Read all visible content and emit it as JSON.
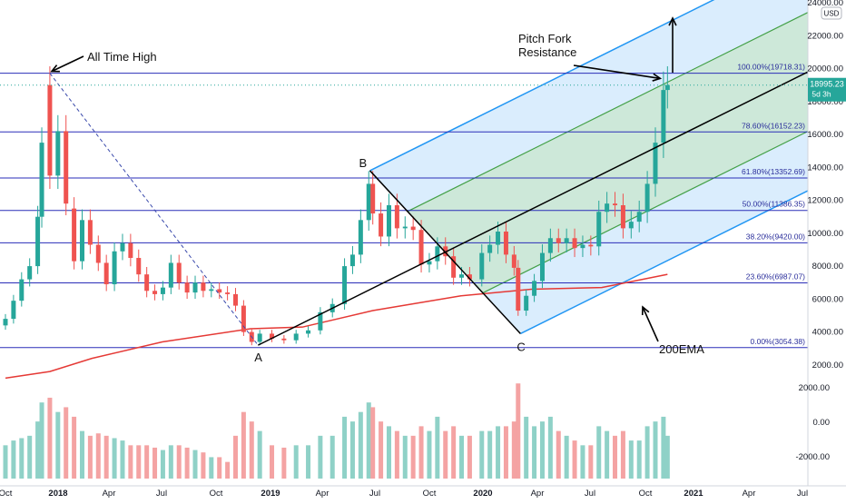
{
  "chart_data": {
    "type": "candlestick",
    "currency_label": "USD",
    "price_axis": {
      "min": 1000,
      "max": 24000,
      "ticks": [
        2000,
        4000,
        6000,
        8000,
        10000,
        12000,
        14000,
        16000,
        18000,
        20000,
        22000,
        24000
      ],
      "tick_labels": [
        "2000.00",
        "4000.00",
        "6000.00",
        "8000.00",
        "10000.00",
        "12000.00",
        "14000.00",
        "16000.00",
        "18000.00",
        "20000.00",
        "22000.00",
        "24000.00"
      ]
    },
    "volume_axis": {
      "ticks": [
        2000,
        0,
        -2000
      ],
      "tick_labels": [
        "2000.00",
        "0.00",
        "-2000.00"
      ]
    },
    "time_axis": {
      "labels": [
        "Oct",
        "2018",
        "Apr",
        "Jul",
        "Oct",
        "2019",
        "Apr",
        "Jul",
        "Oct",
        "2020",
        "Apr",
        "Jul",
        "Oct",
        "2021",
        "Apr",
        "Jul"
      ]
    },
    "last_price": {
      "value": 18995.23,
      "label": "18995.23",
      "countdown": "5d 3h"
    },
    "fib_levels": [
      {
        "ratio": "100.00%",
        "price": 19718.31,
        "label": "100.00%(19718.31)"
      },
      {
        "ratio": "78.60%",
        "price": 16152.23,
        "label": "78.60%(16152.23)"
      },
      {
        "ratio": "61.80%",
        "price": 13352.69,
        "label": "61.80%(13352.69)"
      },
      {
        "ratio": "50.00%",
        "price": 11386.35,
        "label": "50.00%(11386.35)"
      },
      {
        "ratio": "38.20%",
        "price": 9420.0,
        "label": "38.20%(9420.00)"
      },
      {
        "ratio": "23.60%",
        "price": 6987.07,
        "label": "23.60%(6987.07)"
      },
      {
        "ratio": "0.00%",
        "price": 3054.38,
        "label": "0.00%(3054.38)"
      }
    ],
    "pitchfork_points": {
      "A": "A",
      "B": "B",
      "C": "C"
    },
    "annotations": {
      "ath": "All Time High",
      "pitchfork_line1": "Pitch Fork",
      "pitchfork_line2": "Resistance",
      "ema": "200EMA"
    },
    "colors": {
      "up": "#26a69a",
      "down": "#ef5350",
      "vol_up": "#8fd1c7",
      "vol_down": "#f4a3a3",
      "fib": "#2a2eb8",
      "ema": "#e53935",
      "fork_outer": "#2196f3",
      "fork_inner": "#43a047",
      "fork_fill_outer": "#bbdefb",
      "fork_fill_inner": "#c8e6c9"
    },
    "weekly": [
      {
        "t": "2017-10-02",
        "o": 4400,
        "c": 4800,
        "v": 700
      },
      {
        "t": "2017-10-16",
        "o": 4800,
        "c": 5900,
        "v": 800
      },
      {
        "t": "2017-10-30",
        "o": 5900,
        "c": 7200,
        "v": 850
      },
      {
        "t": "2017-11-13",
        "o": 7200,
        "c": 8000,
        "v": 900
      },
      {
        "t": "2017-11-27",
        "o": 8000,
        "c": 11000,
        "v": 1200
      },
      {
        "t": "2017-12-04",
        "o": 11000,
        "c": 15500,
        "v": 1600
      },
      {
        "t": "2017-12-18",
        "o": 19000,
        "c": 13500,
        "v": 1700
      },
      {
        "t": "2018-01-01",
        "o": 13500,
        "c": 16200,
        "v": 1400
      },
      {
        "t": "2018-01-15",
        "o": 16200,
        "c": 11800,
        "v": 1500
      },
      {
        "t": "2018-01-29",
        "o": 11500,
        "c": 8300,
        "v": 1300
      },
      {
        "t": "2018-02-12",
        "o": 8300,
        "c": 10800,
        "v": 1000
      },
      {
        "t": "2018-02-26",
        "o": 10800,
        "c": 9300,
        "v": 900
      },
      {
        "t": "2018-03-12",
        "o": 9300,
        "c": 8200,
        "v": 950
      },
      {
        "t": "2018-03-26",
        "o": 8200,
        "c": 6900,
        "v": 900
      },
      {
        "t": "2018-04-09",
        "o": 6900,
        "c": 8900,
        "v": 850
      },
      {
        "t": "2018-04-23",
        "o": 8900,
        "c": 9400,
        "v": 800
      },
      {
        "t": "2018-05-07",
        "o": 9400,
        "c": 8500,
        "v": 700
      },
      {
        "t": "2018-05-21",
        "o": 8500,
        "c": 7500,
        "v": 700
      },
      {
        "t": "2018-06-04",
        "o": 7500,
        "c": 6500,
        "v": 700
      },
      {
        "t": "2018-06-18",
        "o": 6500,
        "c": 6300,
        "v": 650
      },
      {
        "t": "2018-07-02",
        "o": 6300,
        "c": 6700,
        "v": 600
      },
      {
        "t": "2018-07-16",
        "o": 6700,
        "c": 8200,
        "v": 700
      },
      {
        "t": "2018-07-30",
        "o": 8200,
        "c": 7000,
        "v": 700
      },
      {
        "t": "2018-08-13",
        "o": 7000,
        "c": 6400,
        "v": 650
      },
      {
        "t": "2018-08-27",
        "o": 6400,
        "c": 7000,
        "v": 600
      },
      {
        "t": "2018-09-10",
        "o": 7000,
        "c": 6500,
        "v": 550
      },
      {
        "t": "2018-09-24",
        "o": 6500,
        "c": 6600,
        "v": 450
      },
      {
        "t": "2018-10-08",
        "o": 6600,
        "c": 6400,
        "v": 450
      },
      {
        "t": "2018-10-22",
        "o": 6400,
        "c": 6300,
        "v": 350
      },
      {
        "t": "2018-11-05",
        "o": 6300,
        "c": 5600,
        "v": 900
      },
      {
        "t": "2018-11-19",
        "o": 5600,
        "c": 4000,
        "v": 1400
      },
      {
        "t": "2018-12-03",
        "o": 4000,
        "c": 3400,
        "v": 1200
      },
      {
        "t": "2018-12-17",
        "o": 3400,
        "c": 3900,
        "v": 1000
      },
      {
        "t": "2019-01-07",
        "o": 3900,
        "c": 3600,
        "v": 700
      },
      {
        "t": "2019-01-28",
        "o": 3600,
        "c": 3500,
        "v": 650
      },
      {
        "t": "2019-02-18",
        "o": 3500,
        "c": 3900,
        "v": 700
      },
      {
        "t": "2019-03-11",
        "o": 3900,
        "c": 4100,
        "v": 700
      },
      {
        "t": "2019-04-01",
        "o": 4100,
        "c": 5200,
        "v": 900
      },
      {
        "t": "2019-04-22",
        "o": 5200,
        "c": 5700,
        "v": 900
      },
      {
        "t": "2019-05-13",
        "o": 5700,
        "c": 8000,
        "v": 1300
      },
      {
        "t": "2019-05-27",
        "o": 8000,
        "c": 8700,
        "v": 1200
      },
      {
        "t": "2019-06-10",
        "o": 8700,
        "c": 10800,
        "v": 1400
      },
      {
        "t": "2019-06-24",
        "o": 10800,
        "c": 13000,
        "v": 1600
      },
      {
        "t": "2019-07-01",
        "o": 13000,
        "c": 11200,
        "v": 1500
      },
      {
        "t": "2019-07-15",
        "o": 11200,
        "c": 9800,
        "v": 1200
      },
      {
        "t": "2019-07-29",
        "o": 9800,
        "c": 11700,
        "v": 1100
      },
      {
        "t": "2019-08-12",
        "o": 11700,
        "c": 10300,
        "v": 1000
      },
      {
        "t": "2019-08-26",
        "o": 10300,
        "c": 10400,
        "v": 900
      },
      {
        "t": "2019-09-09",
        "o": 10400,
        "c": 10200,
        "v": 900
      },
      {
        "t": "2019-09-23",
        "o": 10200,
        "c": 8100,
        "v": 1100
      },
      {
        "t": "2019-10-07",
        "o": 8100,
        "c": 8300,
        "v": 1000
      },
      {
        "t": "2019-10-21",
        "o": 8300,
        "c": 9200,
        "v": 1300
      },
      {
        "t": "2019-11-04",
        "o": 9200,
        "c": 8600,
        "v": 1000
      },
      {
        "t": "2019-11-18",
        "o": 8600,
        "c": 7300,
        "v": 1100
      },
      {
        "t": "2019-12-02",
        "o": 7300,
        "c": 7500,
        "v": 900
      },
      {
        "t": "2019-12-16",
        "o": 7500,
        "c": 7200,
        "v": 900
      },
      {
        "t": "2020-01-06",
        "o": 7200,
        "c": 8800,
        "v": 1000
      },
      {
        "t": "2020-01-20",
        "o": 8800,
        "c": 9300,
        "v": 1000
      },
      {
        "t": "2020-02-03",
        "o": 9300,
        "c": 10100,
        "v": 1100
      },
      {
        "t": "2020-02-17",
        "o": 10100,
        "c": 8700,
        "v": 1100
      },
      {
        "t": "2020-03-02",
        "o": 8700,
        "c": 7900,
        "v": 1200
      },
      {
        "t": "2020-03-09",
        "o": 7900,
        "c": 5300,
        "v": 2000
      },
      {
        "t": "2020-03-23",
        "o": 5300,
        "c": 6200,
        "v": 1300
      },
      {
        "t": "2020-04-06",
        "o": 6200,
        "c": 7100,
        "v": 1100
      },
      {
        "t": "2020-04-20",
        "o": 7100,
        "c": 8800,
        "v": 1200
      },
      {
        "t": "2020-05-04",
        "o": 8800,
        "c": 9700,
        "v": 1300
      },
      {
        "t": "2020-05-18",
        "o": 9700,
        "c": 9400,
        "v": 1000
      },
      {
        "t": "2020-06-01",
        "o": 9400,
        "c": 9700,
        "v": 900
      },
      {
        "t": "2020-06-15",
        "o": 9700,
        "c": 9100,
        "v": 800
      },
      {
        "t": "2020-06-29",
        "o": 9100,
        "c": 9300,
        "v": 700
      },
      {
        "t": "2020-07-13",
        "o": 9300,
        "c": 9200,
        "v": 700
      },
      {
        "t": "2020-07-27",
        "o": 9200,
        "c": 11300,
        "v": 1100
      },
      {
        "t": "2020-08-10",
        "o": 11300,
        "c": 11800,
        "v": 1000
      },
      {
        "t": "2020-08-24",
        "o": 11800,
        "c": 11700,
        "v": 900
      },
      {
        "t": "2020-09-07",
        "o": 11700,
        "c": 10300,
        "v": 1000
      },
      {
        "t": "2020-09-21",
        "o": 10300,
        "c": 10700,
        "v": 800
      },
      {
        "t": "2020-10-05",
        "o": 10700,
        "c": 11300,
        "v": 800
      },
      {
        "t": "2020-10-19",
        "o": 11300,
        "c": 13000,
        "v": 1100
      },
      {
        "t": "2020-11-02",
        "o": 13000,
        "c": 15500,
        "v": 1200
      },
      {
        "t": "2020-11-16",
        "o": 15500,
        "c": 18700,
        "v": 1300
      },
      {
        "t": "2020-11-23",
        "o": 18700,
        "c": 19000,
        "v": 900
      }
    ]
  }
}
